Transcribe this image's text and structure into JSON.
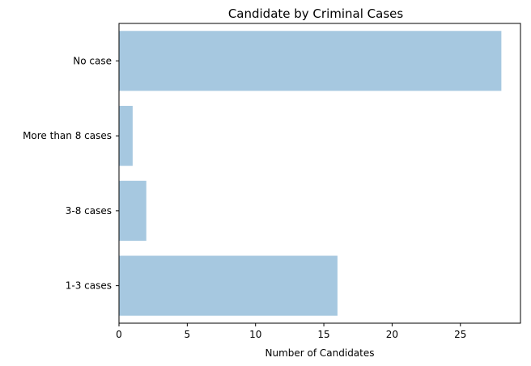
{
  "chart_data": {
    "type": "bar",
    "orientation": "horizontal",
    "title": "Candidate by Criminal Cases",
    "xlabel": "Number of Candidates",
    "ylabel": "",
    "categories": [
      "1-3 cases",
      "3-8 cases",
      "More than 8 cases",
      "No case"
    ],
    "values": [
      16,
      2,
      1,
      28
    ],
    "xlim": [
      0,
      29.4
    ],
    "xticks": [
      0,
      5,
      10,
      15,
      20,
      25
    ],
    "grid": false,
    "bar_color": "#a6c8e0"
  }
}
